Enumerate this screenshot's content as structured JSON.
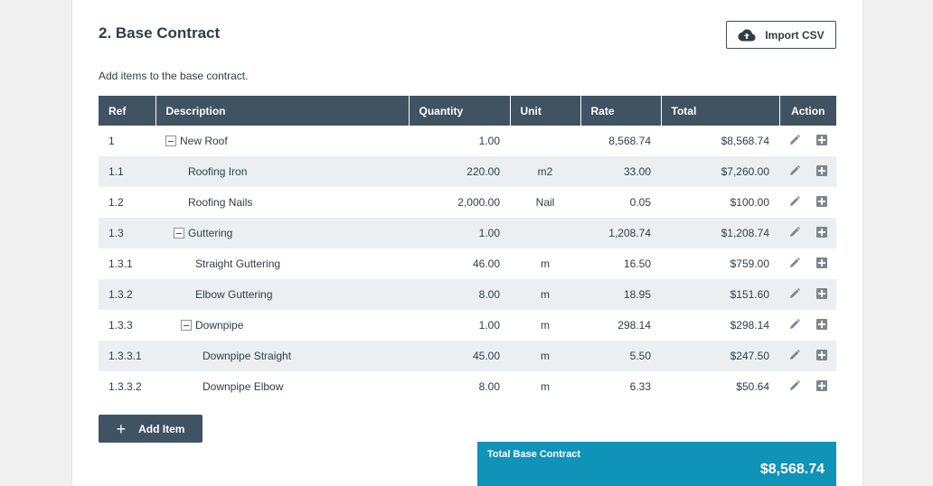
{
  "section": {
    "title": "2. Base Contract",
    "subtitle": "Add items to the base contract.",
    "import_label": "Import CSV"
  },
  "table": {
    "headers": {
      "ref": "Ref",
      "description": "Description",
      "quantity": "Quantity",
      "unit": "Unit",
      "rate": "Rate",
      "total": "Total",
      "action": "Action"
    },
    "rows": [
      {
        "ref": "1",
        "description": "New Roof",
        "quantity": "1.00",
        "unit": "",
        "rate": "8,568.74",
        "total": "$8,568.74",
        "collapsible": true,
        "level": 0
      },
      {
        "ref": "1.1",
        "description": "Roofing Iron",
        "quantity": "220.00",
        "unit": "m2",
        "rate": "33.00",
        "total": "$7,260.00",
        "collapsible": false,
        "level": 1
      },
      {
        "ref": "1.2",
        "description": "Roofing Nails",
        "quantity": "2,000.00",
        "unit": "Nail",
        "rate": "0.05",
        "total": "$100.00",
        "collapsible": false,
        "level": 1
      },
      {
        "ref": "1.3",
        "description": "Guttering",
        "quantity": "1.00",
        "unit": "",
        "rate": "1,208.74",
        "total": "$1,208.74",
        "collapsible": true,
        "level": 1
      },
      {
        "ref": "1.3.1",
        "description": "Straight Guttering",
        "quantity": "46.00",
        "unit": "m",
        "rate": "16.50",
        "total": "$759.00",
        "collapsible": false,
        "level": 2
      },
      {
        "ref": "1.3.2",
        "description": "Elbow Guttering",
        "quantity": "8.00",
        "unit": "m",
        "rate": "18.95",
        "total": "$151.60",
        "collapsible": false,
        "level": 2
      },
      {
        "ref": "1.3.3",
        "description": "Downpipe",
        "quantity": "1.00",
        "unit": "m",
        "rate": "298.14",
        "total": "$298.14",
        "collapsible": true,
        "level": 2
      },
      {
        "ref": "1.3.3.1",
        "description": "Downpipe Straight",
        "quantity": "45.00",
        "unit": "m",
        "rate": "5.50",
        "total": "$247.50",
        "collapsible": false,
        "level": 3
      },
      {
        "ref": "1.3.3.2",
        "description": "Downpipe Elbow",
        "quantity": "8.00",
        "unit": "m",
        "rate": "6.33",
        "total": "$50.64",
        "collapsible": false,
        "level": 3
      }
    ]
  },
  "actions": {
    "add_item_label": "Add Item"
  },
  "summary": {
    "label": "Total Base Contract",
    "value": "$8,568.74"
  },
  "icons": {
    "import": "cloud-upload-icon",
    "collapse": "minus-box-icon",
    "edit": "pencil-icon",
    "add_child": "plus-box-icon",
    "add_item": "plus-icon"
  },
  "colors": {
    "header_bg": "#3f5362",
    "row_stripe": "#eceff1",
    "total_bg": "#0f93b8"
  }
}
